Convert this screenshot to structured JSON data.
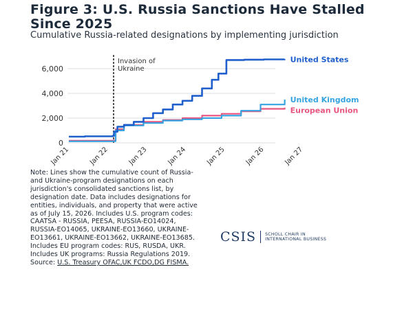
{
  "header": {
    "title": "Figure 3: U.S. Russia Sanctions Have Stalled Since 2025",
    "subtitle": "Cumulative Russia-related designations by implementing jurisdiction"
  },
  "chart_data": {
    "type": "line",
    "title": "Figure 3: U.S. Russia Sanctions Have Stalled Since 2025",
    "subtitle": "Cumulative Russia-related designations by implementing jurisdiction",
    "xlabel": "",
    "ylabel": "",
    "x_ticks": [
      "Jan 21",
      "Jan 22",
      "Jan 23",
      "Jan 24",
      "Jan 25",
      "Jan 26",
      "Jan 27"
    ],
    "x_range": [
      "2021-01-01",
      "2027-01-01"
    ],
    "y_ticks": [
      0,
      2000,
      4000,
      6000
    ],
    "y_tick_labels": [
      "0",
      "2,000",
      "4,000",
      "6,000"
    ],
    "ylim": [
      0,
      7000
    ],
    "grid": "horizontal",
    "legend": "direct labels at line ends (right)",
    "annotation": {
      "text": "Invasion of Ukraine",
      "date": "2022-02-24"
    },
    "series": [
      {
        "name": "United States",
        "color": "#1f5fcc",
        "points": [
          [
            "2021-01-01",
            500
          ],
          [
            "2021-06-01",
            530
          ],
          [
            "2022-02-15",
            560
          ],
          [
            "2022-02-28",
            900
          ],
          [
            "2022-04-01",
            1300
          ],
          [
            "2022-06-01",
            1450
          ],
          [
            "2022-09-01",
            1700
          ],
          [
            "2022-12-01",
            2000
          ],
          [
            "2023-03-01",
            2400
          ],
          [
            "2023-06-01",
            2700
          ],
          [
            "2023-09-01",
            3100
          ],
          [
            "2023-12-01",
            3400
          ],
          [
            "2024-03-01",
            3800
          ],
          [
            "2024-06-01",
            4400
          ],
          [
            "2024-09-01",
            5100
          ],
          [
            "2024-11-01",
            5600
          ],
          [
            "2025-01-15",
            6700
          ],
          [
            "2025-07-01",
            6730
          ],
          [
            "2026-01-01",
            6750
          ],
          [
            "2026-07-15",
            6760
          ]
        ]
      },
      {
        "name": "United Kingdom",
        "color": "#35a3e0",
        "points": [
          [
            "2021-01-01",
            120
          ],
          [
            "2022-02-20",
            130
          ],
          [
            "2022-03-15",
            1000
          ],
          [
            "2022-06-01",
            1400
          ],
          [
            "2022-12-01",
            1600
          ],
          [
            "2023-06-01",
            1800
          ],
          [
            "2023-12-01",
            1900
          ],
          [
            "2024-06-01",
            2000
          ],
          [
            "2024-12-01",
            2200
          ],
          [
            "2025-06-01",
            2600
          ],
          [
            "2025-12-01",
            3100
          ],
          [
            "2026-07-15",
            3500
          ]
        ]
      },
      {
        "name": "European Union",
        "color": "#e8557e",
        "points": [
          [
            "2021-01-01",
            180
          ],
          [
            "2022-02-20",
            190
          ],
          [
            "2022-03-15",
            1100
          ],
          [
            "2022-06-01",
            1450
          ],
          [
            "2022-12-01",
            1700
          ],
          [
            "2023-06-01",
            1850
          ],
          [
            "2023-12-01",
            2000
          ],
          [
            "2024-06-01",
            2200
          ],
          [
            "2024-12-01",
            2350
          ],
          [
            "2025-06-01",
            2550
          ],
          [
            "2025-12-01",
            2750
          ],
          [
            "2026-07-15",
            2850
          ]
        ]
      }
    ]
  },
  "note": {
    "text": "Note: Lines show the cumulative count of Russia- and Ukraine-program designations on each jurisdiction's consolidated sanctions list, by designation date. Data includes designations for entities, individuals, and property that were active as of July 15, 2026. Includes U.S. program codes: CAATSA - RUSSIA, PEESA, RUSSIA-EO14024, RUSSIA-EO14065, UKRAINE-EO13660, UKRAINE-EO13661, UKRAINE-EO13662, UKRAINE-EO13685. Includes EU program codes: RUS, RUSDA, UKR. Includes UK programs: Russia Regulations 2019.",
    "source_label": "Source: ",
    "source_links": "U.S. Treasury OFAC,UK FCDO,DG FISMA."
  },
  "logo": {
    "mark": "CSIS",
    "tagline_1": "SCHOLL CHAIR IN",
    "tagline_2": "INTERNATIONAL BUSINESS",
    "color": "#1f3a64"
  }
}
